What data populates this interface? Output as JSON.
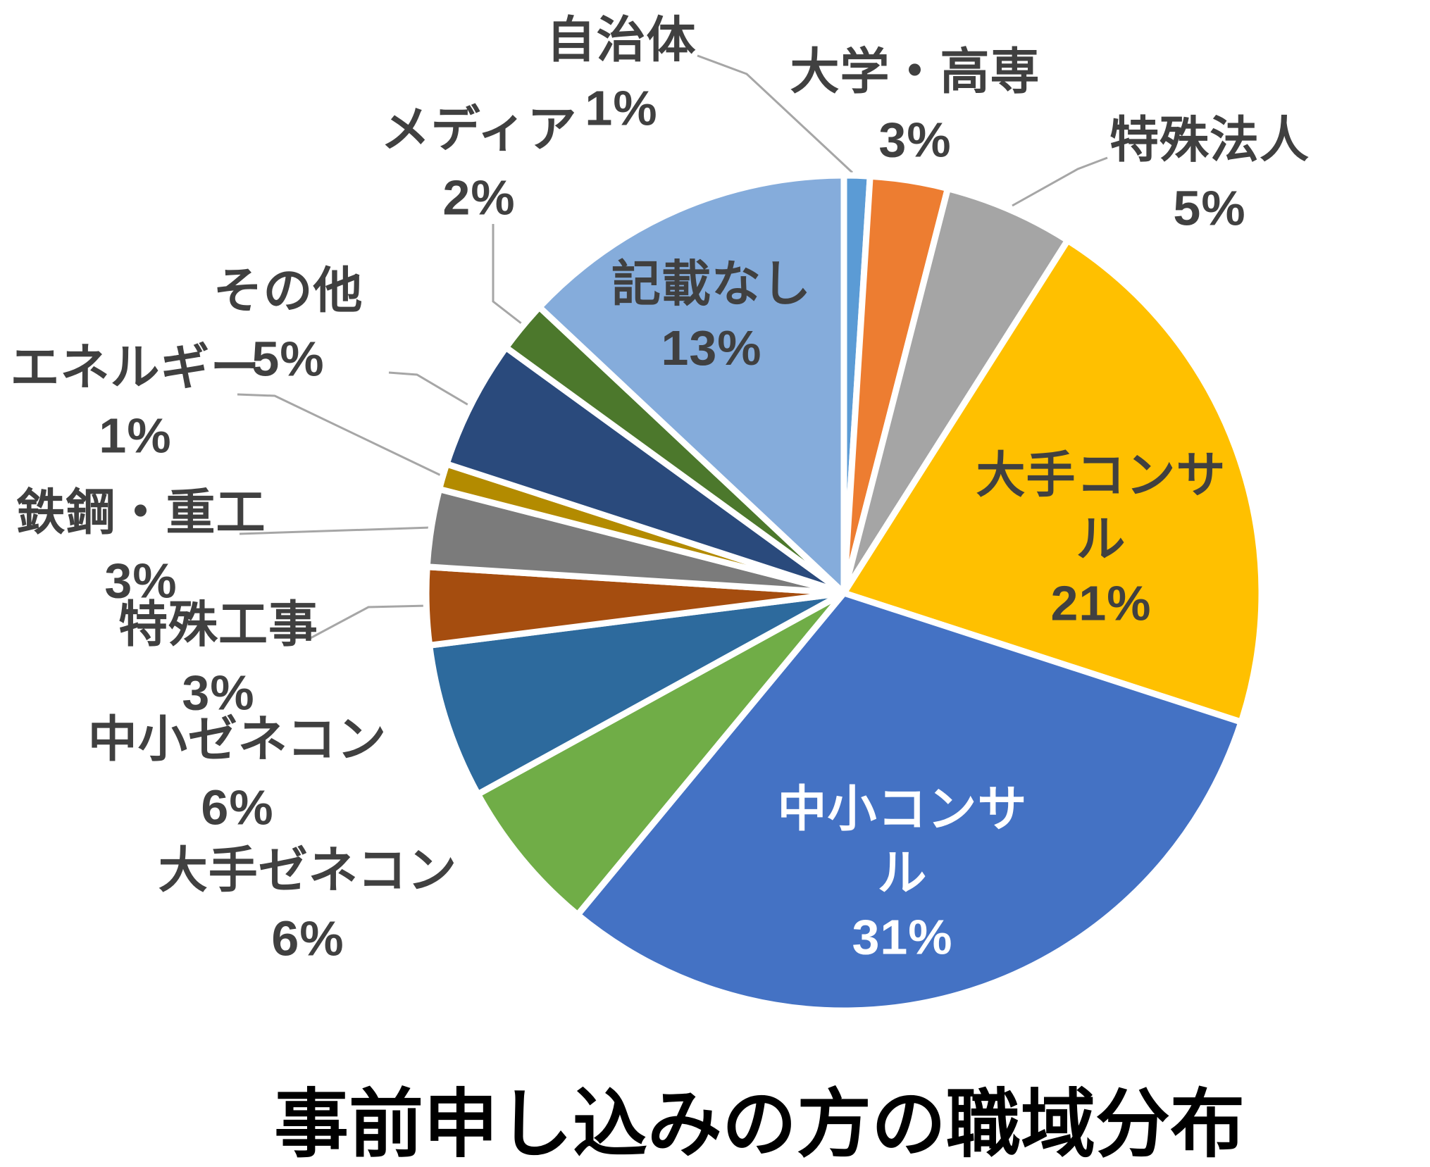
{
  "page": {
    "background": "#FFFFFF"
  },
  "title": {
    "text": "事前申し込みの方の職域分布",
    "color": "#000000"
  },
  "chart_data": {
    "type": "pie",
    "title": "事前申し込みの方の職域分布",
    "direction": "clockwise",
    "start_angle_deg": 0,
    "legend": "none",
    "data_label_style": "category name above percentage",
    "label_text_color": "#404040",
    "slice_border_color": "#FFFFFF",
    "leader_line_color": "#A6A6A6",
    "slices": [
      {
        "label": "自治体",
        "value_pct": 1,
        "pct_label": "1%",
        "color": "#5B9BD5",
        "label_placement": "outside"
      },
      {
        "label": "大学・高専",
        "value_pct": 3,
        "pct_label": "3%",
        "color": "#ED7D31",
        "label_placement": "outside"
      },
      {
        "label": "特殊法人",
        "value_pct": 5,
        "pct_label": "5%",
        "color": "#A5A5A5",
        "label_placement": "outside"
      },
      {
        "label": "大手コンサル",
        "value_pct": 21,
        "pct_label": "21%",
        "color": "#FFC000",
        "label_placement": "inside"
      },
      {
        "label": "中小コンサル",
        "value_pct": 31,
        "pct_label": "31%",
        "color": "#4472C4",
        "label_placement": "inside-white"
      },
      {
        "label": "大手ゼネコン",
        "value_pct": 6,
        "pct_label": "6%",
        "color": "#70AD47",
        "label_placement": "outside"
      },
      {
        "label": "中小ゼネコン",
        "value_pct": 6,
        "pct_label": "6%",
        "color": "#2D6A9D",
        "label_placement": "outside"
      },
      {
        "label": "特殊工事",
        "value_pct": 3,
        "pct_label": "3%",
        "color": "#A54D0F",
        "label_placement": "outside"
      },
      {
        "label": "鉄鋼・重工",
        "value_pct": 3,
        "pct_label": "3%",
        "color": "#7B7B7B",
        "label_placement": "outside"
      },
      {
        "label": "エネルギー",
        "value_pct": 1,
        "pct_label": "1%",
        "color": "#B38B00",
        "label_placement": "outside"
      },
      {
        "label": "その他",
        "value_pct": 5,
        "pct_label": "5%",
        "color": "#2A4A7C",
        "label_placement": "outside"
      },
      {
        "label": "メディア",
        "value_pct": 2,
        "pct_label": "2%",
        "color": "#4C782C",
        "label_placement": "outside"
      },
      {
        "label": "記載なし",
        "value_pct": 13,
        "pct_label": "13%",
        "color": "#85ACDB",
        "label_placement": "inside"
      }
    ]
  }
}
